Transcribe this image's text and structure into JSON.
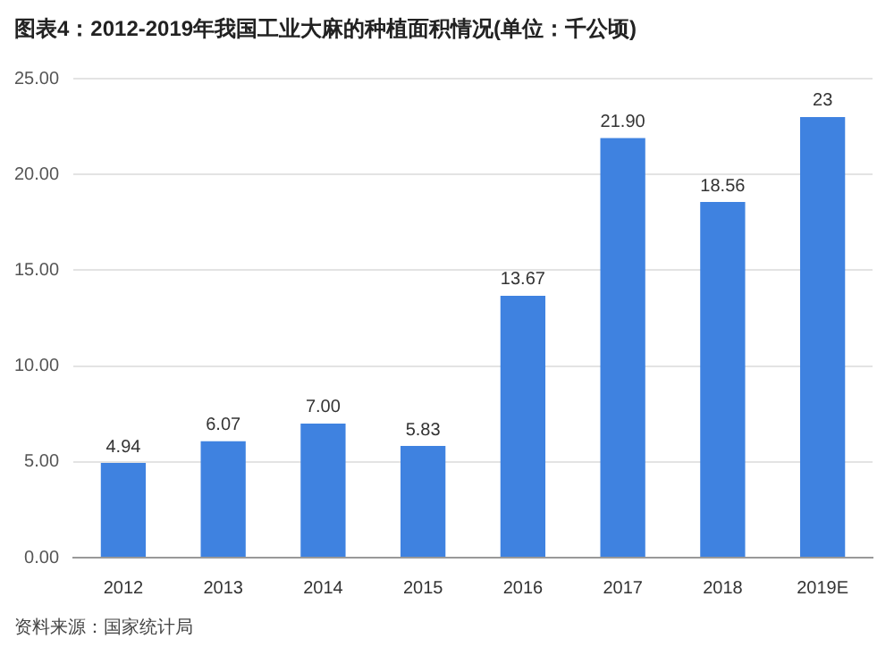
{
  "chart_data": {
    "type": "bar",
    "title": "图表4：2012-2019年我国工业大麻的种植面积情况(单位：千公顷)",
    "categories": [
      "2012",
      "2013",
      "2014",
      "2015",
      "2016",
      "2017",
      "2018",
      "2019E"
    ],
    "values": [
      4.94,
      6.07,
      7.0,
      5.83,
      13.67,
      21.9,
      18.56,
      23
    ],
    "value_labels": [
      "4.94",
      "6.07",
      "7.00",
      "5.83",
      "13.67",
      "21.90",
      "18.56",
      "23"
    ],
    "color": "#3f82e0",
    "ylim": [
      0,
      25
    ],
    "yticks": [
      {
        "value": 0,
        "label": "0.00"
      },
      {
        "value": 5,
        "label": "5.00"
      },
      {
        "value": 10,
        "label": "10.00"
      },
      {
        "value": 15,
        "label": "15.00"
      },
      {
        "value": 20,
        "label": "20.00"
      },
      {
        "value": 25,
        "label": "25.00"
      }
    ],
    "grid": "y",
    "legend": false,
    "annotations": [
      "资料来源：国家统计局"
    ]
  }
}
